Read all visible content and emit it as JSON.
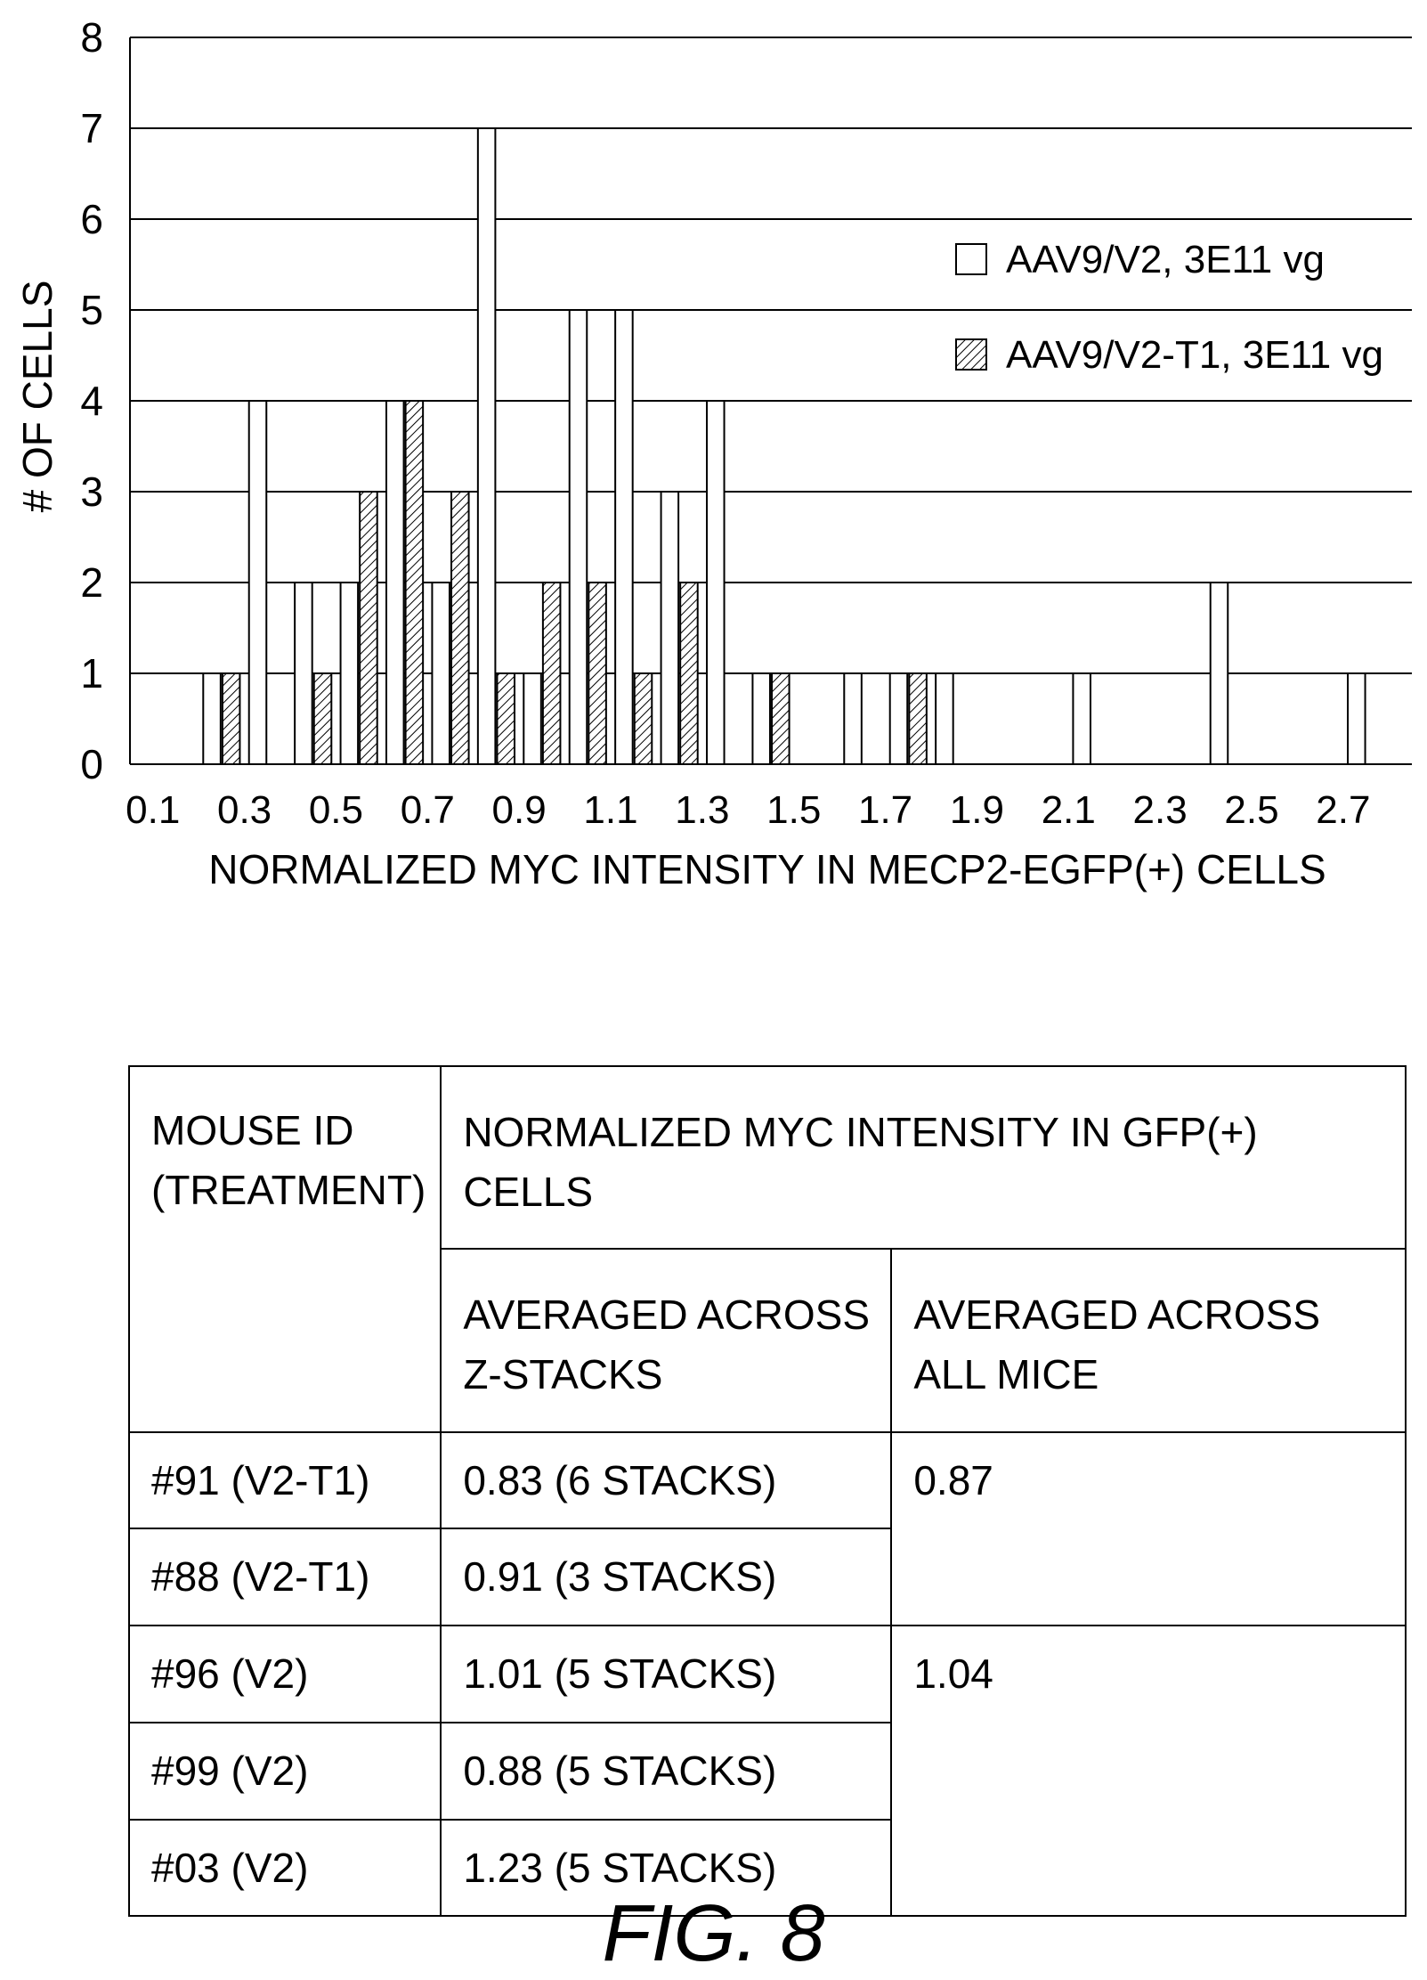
{
  "chart_data": {
    "type": "bar",
    "xlabel": "NORMALIZED MYC INTENSITY IN MECP2-EGFP(+) CELLS",
    "ylabel": "# OF CELLS",
    "ylim": [
      0,
      8
    ],
    "yticks": [
      0,
      1,
      2,
      3,
      4,
      5,
      6,
      7,
      8
    ],
    "xticks": [
      "0.1",
      "0.3",
      "0.5",
      "0.7",
      "0.9",
      "1.1",
      "1.3",
      "1.5",
      "1.7",
      "1.9",
      "2.1",
      "2.3",
      "2.5",
      "2.7"
    ],
    "xlim": [
      0.05,
      2.85
    ],
    "grid": "horizontal",
    "legend_position": "upper-right",
    "series": [
      {
        "name": "AAV9/V2, 3E11 vg",
        "fill": "open",
        "x": [
          0.25,
          0.35,
          0.45,
          0.55,
          0.65,
          0.75,
          0.85,
          0.95,
          1.05,
          1.15,
          1.25,
          1.35,
          1.45,
          1.65,
          1.75,
          1.85,
          2.15,
          2.45,
          2.75
        ],
        "values": [
          1,
          4,
          2,
          2,
          4,
          2,
          7,
          1,
          5,
          5,
          3,
          4,
          1,
          1,
          1,
          1,
          1,
          2,
          1
        ]
      },
      {
        "name": "AAV9/V2-T1, 3E11 vg",
        "fill": "hatched",
        "x": [
          0.25,
          0.45,
          0.55,
          0.65,
          0.75,
          0.85,
          0.95,
          1.05,
          1.15,
          1.25,
          1.45,
          1.75
        ],
        "values": [
          1,
          1,
          3,
          4,
          3,
          1,
          2,
          2,
          1,
          2,
          1,
          1
        ]
      }
    ]
  },
  "table": {
    "header_mouse_id": "MOUSE ID\n(TREATMENT)",
    "header_main": "NORMALIZED MYC INTENSITY IN GFP(+) CELLS",
    "header_sub1": "AVERAGED ACROSS\nZ-STACKS",
    "header_sub2": "AVERAGED ACROSS\nALL MICE",
    "rows": [
      {
        "id": "#91 (V2-T1)",
        "stacks": "0.83 (6 STACKS)"
      },
      {
        "id": "#88 (V2-T1)",
        "stacks": "0.91 (3 STACKS)"
      },
      {
        "id": "#96 (V2)",
        "stacks": "1.01 (5 STACKS)"
      },
      {
        "id": "#99 (V2)",
        "stacks": "0.88 (5 STACKS)"
      },
      {
        "id": "#03 (V2)",
        "stacks": "1.23 (5 STACKS)"
      }
    ],
    "group_averages": [
      "0.87",
      "1.04"
    ]
  },
  "figure_label": "FIG. 8"
}
